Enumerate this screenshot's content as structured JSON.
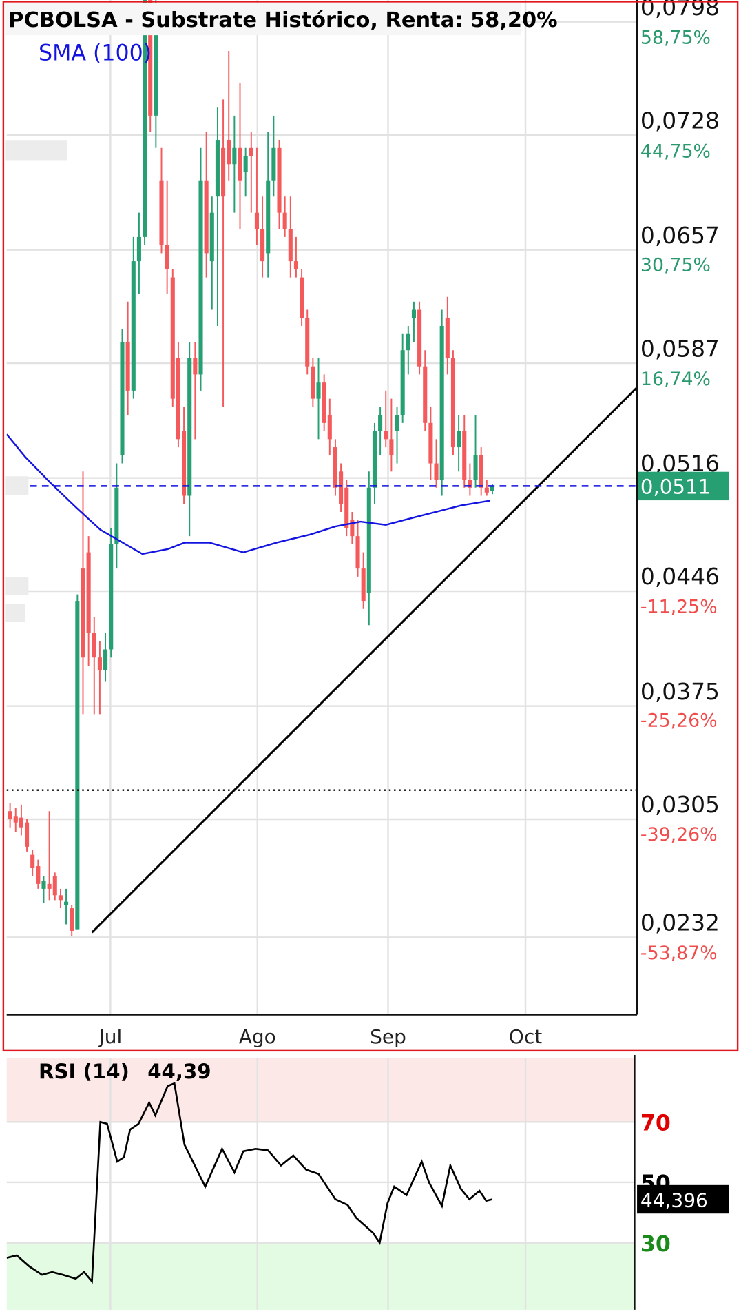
{
  "chart_data": [
    {
      "type": "candlestick",
      "title": "PCBOLSA - Substrate Histórico, Renta: 58,20%",
      "up_color": "#26a073",
      "down_color": "#f4595b",
      "x": [
        0,
        1,
        2,
        3,
        4,
        5,
        6,
        7,
        8,
        9,
        10,
        11,
        12,
        13,
        14,
        15,
        16,
        17,
        18,
        19,
        20,
        21,
        22,
        23,
        24,
        25,
        26,
        27,
        28,
        29,
        30,
        31,
        32,
        33,
        34,
        35,
        36,
        37,
        38,
        39,
        40,
        41,
        42,
        43,
        44,
        45,
        46,
        47,
        48,
        49,
        50,
        51,
        52,
        53,
        54,
        55,
        56,
        57,
        58,
        59,
        60,
        61,
        62,
        63,
        64,
        65,
        66,
        67,
        68,
        69,
        70,
        71,
        72,
        73,
        74,
        75,
        76,
        77,
        78,
        79,
        80,
        81,
        82,
        83,
        84,
        85,
        86
      ],
      "open": [
        0.031,
        0.0307,
        0.0306,
        0.0303,
        0.0283,
        0.0276,
        0.0262,
        0.0265,
        0.027,
        0.0258,
        0.0252,
        0.025,
        0.0237,
        0.046,
        0.047,
        0.042,
        0.0405,
        0.0397,
        0.041,
        0.0475,
        0.053,
        0.06,
        0.057,
        0.065,
        0.0665,
        0.0815,
        0.074,
        0.07,
        0.066,
        0.064,
        0.059,
        0.0545,
        0.0505,
        0.059,
        0.058,
        0.07,
        0.065,
        0.069,
        0.072,
        0.0725,
        0.071,
        0.072,
        0.0705,
        0.072,
        0.068,
        0.067,
        0.0655,
        0.07,
        0.072,
        0.068,
        0.067,
        0.065,
        0.064,
        0.0615,
        0.0585,
        0.0565,
        0.0575,
        0.0555,
        0.0535,
        0.052,
        0.051,
        0.049,
        0.048,
        0.046,
        0.0445,
        0.051,
        0.0545,
        0.0545,
        0.054,
        0.0545,
        0.0555,
        0.0595,
        0.0615,
        0.062,
        0.0585,
        0.055,
        0.0525,
        0.0515,
        0.0615,
        0.059,
        0.0535,
        0.0545,
        0.0515,
        0.0515,
        0.053,
        0.051,
        0.0508
      ],
      "high": [
        0.0315,
        0.0312,
        0.0314,
        0.0305,
        0.0286,
        0.028,
        0.027,
        0.031,
        0.0272,
        0.0262,
        0.0262,
        0.0252,
        0.0444,
        0.052,
        0.048,
        0.043,
        0.0415,
        0.042,
        0.0485,
        0.0525,
        0.0608,
        0.0625,
        0.0665,
        0.068,
        0.082,
        0.082,
        0.082,
        0.072,
        0.07,
        0.0645,
        0.06,
        0.056,
        0.06,
        0.06,
        0.072,
        0.073,
        0.069,
        0.0745,
        0.075,
        0.078,
        0.074,
        0.076,
        0.072,
        0.073,
        0.072,
        0.069,
        0.073,
        0.074,
        0.0725,
        0.069,
        0.069,
        0.0665,
        0.0645,
        0.062,
        0.059,
        0.059,
        0.058,
        0.0565,
        0.054,
        0.0525,
        0.0515,
        0.0495,
        0.049,
        0.047,
        0.052,
        0.055,
        0.056,
        0.057,
        0.0565,
        0.056,
        0.0605,
        0.061,
        0.0625,
        0.0625,
        0.0595,
        0.056,
        0.054,
        0.062,
        0.0628,
        0.0595,
        0.0555,
        0.0555,
        0.0525,
        0.0555,
        0.0535,
        0.0515,
        0.0512
      ],
      "low": [
        0.03,
        0.0297,
        0.0295,
        0.0285,
        0.027,
        0.0262,
        0.0253,
        0.0255,
        0.0255,
        0.025,
        0.024,
        0.0233,
        0.0237,
        0.037,
        0.04,
        0.037,
        0.037,
        0.039,
        0.0405,
        0.046,
        0.0525,
        0.0555,
        0.0565,
        0.063,
        0.066,
        0.073,
        0.072,
        0.0655,
        0.063,
        0.056,
        0.0535,
        0.05,
        0.048,
        0.054,
        0.057,
        0.064,
        0.062,
        0.061,
        0.056,
        0.07,
        0.068,
        0.067,
        0.069,
        0.068,
        0.066,
        0.064,
        0.064,
        0.069,
        0.067,
        0.0665,
        0.064,
        0.064,
        0.061,
        0.058,
        0.056,
        0.054,
        0.0545,
        0.053,
        0.0505,
        0.0495,
        0.048,
        0.0475,
        0.0455,
        0.0435,
        0.0425,
        0.05,
        0.053,
        0.0535,
        0.052,
        0.0525,
        0.055,
        0.058,
        0.06,
        0.058,
        0.0545,
        0.0515,
        0.051,
        0.0505,
        0.058,
        0.053,
        0.052,
        0.051,
        0.0505,
        0.051,
        0.0505,
        0.0505,
        0.0506
      ],
      "close": [
        0.0305,
        0.0303,
        0.03,
        0.0288,
        0.0275,
        0.0265,
        0.0267,
        0.0262,
        0.0258,
        0.0255,
        0.0254,
        0.0236,
        0.044,
        0.0405,
        0.042,
        0.0405,
        0.0397,
        0.041,
        0.0475,
        0.051,
        0.06,
        0.057,
        0.065,
        0.0665,
        0.0815,
        0.074,
        0.079,
        0.066,
        0.0645,
        0.0565,
        0.054,
        0.0505,
        0.059,
        0.058,
        0.07,
        0.0655,
        0.068,
        0.0725,
        0.069,
        0.071,
        0.072,
        0.07,
        0.0715,
        0.0715,
        0.067,
        0.065,
        0.07,
        0.072,
        0.068,
        0.067,
        0.065,
        0.0645,
        0.0615,
        0.0585,
        0.0565,
        0.0575,
        0.055,
        0.054,
        0.051,
        0.05,
        0.0485,
        0.048,
        0.046,
        0.044,
        0.051,
        0.0545,
        0.0555,
        0.054,
        0.053,
        0.0555,
        0.0595,
        0.0605,
        0.062,
        0.0585,
        0.055,
        0.0525,
        0.0515,
        0.061,
        0.059,
        0.0535,
        0.0545,
        0.0515,
        0.051,
        0.053,
        0.051,
        0.0507,
        0.0511
      ],
      "series": [
        {
          "name": "SMA (100)",
          "color": "#1414e0",
          "x": [
            -0.6,
            2.7,
            7.2,
            11.7,
            16.1,
            20.6,
            23.6,
            28.1,
            31.1,
            35.6,
            41.6,
            47.5,
            53.5,
            58,
            62.5,
            67,
            71.4,
            75.9,
            80.4,
            85.6
          ],
          "values": [
            0.0543,
            0.0529,
            0.0513,
            0.0498,
            0.0484,
            0.0475,
            0.0469,
            0.0472,
            0.0476,
            0.0476,
            0.047,
            0.0476,
            0.0481,
            0.0486,
            0.0489,
            0.0487,
            0.0491,
            0.0495,
            0.0499,
            0.0502
          ]
        }
      ],
      "trendline": {
        "x": [
          14.6,
          111.8
        ],
        "y": [
          0.0235,
          0.0572
        ]
      },
      "reference_line": 0.0323,
      "last_price": {
        "value": 0.0511,
        "label": "0,0511"
      },
      "last_color": "#26a073",
      "xlim": [
        -0.6,
        111.8
      ],
      "xticks": [
        {
          "value": 17.9,
          "label": "Jul"
        },
        {
          "value": 44.1,
          "label": "Ago"
        },
        {
          "value": 67.4,
          "label": "Sep"
        },
        {
          "value": 91.9,
          "label": "Oct"
        }
      ],
      "ylim": [
        0.01842,
        0.08115
      ],
      "yticks": [
        {
          "value": 0.0798,
          "label": "0,0798"
        },
        {
          "value": 0.0728,
          "label": "0,0728"
        },
        {
          "value": 0.0657,
          "label": "0,0657"
        },
        {
          "value": 0.0587,
          "label": "0,0587"
        },
        {
          "value": 0.0516,
          "label": "0,0516"
        },
        {
          "value": 0.0446,
          "label": "0,0446"
        },
        {
          "value": 0.0375,
          "label": "0,0375"
        },
        {
          "value": 0.0305,
          "label": "0,0305"
        },
        {
          "value": 0.0232,
          "label": "0,0232"
        }
      ],
      "y2lim": [
        -63.36,
        61.43
      ],
      "y2ticks": [
        {
          "value": 58.75,
          "label": "58,75%"
        },
        {
          "value": 44.75,
          "label": "44,75%"
        },
        {
          "value": 30.75,
          "label": "30,75%"
        },
        {
          "value": 16.74,
          "label": "16,74%"
        },
        {
          "value": -11.25,
          "label": "-11,25%"
        },
        {
          "value": -25.26,
          "label": "-25,26%"
        },
        {
          "value": -39.26,
          "label": "-39,26%"
        },
        {
          "value": -53.87,
          "label": "-53,87%"
        }
      ],
      "y2_positive_color": "#2a9a6e",
      "y2_negative_color": "#f04c4c",
      "grid": true
    },
    {
      "type": "line",
      "title": "RSI (14)",
      "last": {
        "value": 44.39,
        "label": "44,39"
      },
      "last_box": {
        "value": 44.396,
        "label": "44,396"
      },
      "series": [
        {
          "name": "RSI",
          "color": "#000000",
          "x": [
            -0.6,
            1.2,
            3.4,
            5.7,
            7.5,
            9.4,
            11.7,
            13.2,
            14.6,
            16.1,
            17.3,
            19.1,
            20.3,
            21.4,
            22.9,
            24.8,
            25.9,
            28.1,
            29.3,
            31.1,
            33.3,
            34.8,
            37.8,
            40,
            41.6,
            43.8,
            46,
            48.3,
            50.5,
            52.8,
            55,
            58,
            60.2,
            61.7,
            64.7,
            65.9,
            67.3,
            68.5,
            70.7,
            73.4,
            74.7,
            77,
            78.5,
            80.4,
            81.9,
            83.7,
            84.9,
            86
          ],
          "values": [
            25,
            25.8,
            22.2,
            19.4,
            20.3,
            19.4,
            18.1,
            20.3,
            17.2,
            70,
            69.4,
            56.9,
            58.3,
            67.5,
            69.4,
            76.4,
            72.2,
            81.9,
            82.8,
            62.5,
            54.2,
            48.6,
            61.1,
            53.3,
            60.3,
            61.1,
            60.6,
            55.6,
            58.9,
            54.2,
            52.8,
            44.4,
            42.5,
            38.3,
            33.3,
            30,
            43.1,
            48.6,
            45.8,
            56.9,
            50,
            42.2,
            55.6,
            47.8,
            44.4,
            47.2,
            43.9,
            44.4
          ]
        }
      ],
      "overbought": 70,
      "oversold": 30,
      "overbought_color": "#fde8e8",
      "oversold_color": "#e2fbe2",
      "ylim": [
        7.8,
        91.1
      ],
      "yticks": [
        30,
        50,
        70
      ],
      "ytick_colors": [
        "#1a8a1a",
        "#000000",
        "#e00000"
      ],
      "grid": true
    }
  ]
}
